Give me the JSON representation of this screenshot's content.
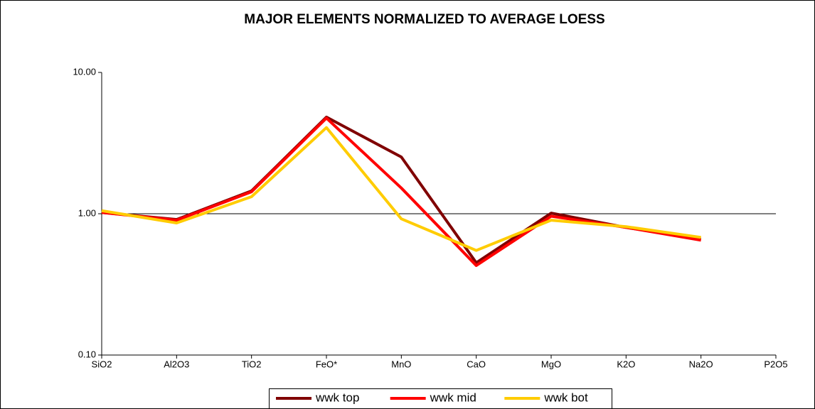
{
  "chart_data": {
    "type": "line",
    "title": "MAJOR ELEMENTS NORMALIZED TO AVERAGE LOESS",
    "categories": [
      "SiO2",
      "Al2O3",
      "TiO2",
      "FeO*",
      "MnO",
      "CaO",
      "MgO",
      "K2O",
      "Na2O",
      "P2O5"
    ],
    "series": [
      {
        "name": "wwk top",
        "color": "#800000",
        "values": [
          1.02,
          0.91,
          1.45,
          4.83,
          2.52,
          0.45,
          1.01,
          0.8,
          0.66,
          null
        ]
      },
      {
        "name": "wwk mid",
        "color": "#ff0000",
        "values": [
          1.02,
          0.9,
          1.43,
          4.75,
          1.52,
          0.43,
          0.96,
          0.8,
          0.65,
          null
        ]
      },
      {
        "name": "wwk bot",
        "color": "#ffcc00",
        "values": [
          1.05,
          0.86,
          1.32,
          4.07,
          0.92,
          0.55,
          0.9,
          0.81,
          0.68,
          null
        ]
      }
    ],
    "ylim": [
      0.1,
      10
    ],
    "log_scale": true,
    "yticks": [
      {
        "value": 0.1,
        "label": "0.10"
      },
      {
        "value": 1,
        "label": "1.00"
      },
      {
        "value": 10,
        "label": "10.00"
      }
    ],
    "grid": true,
    "legend": "bottom"
  }
}
